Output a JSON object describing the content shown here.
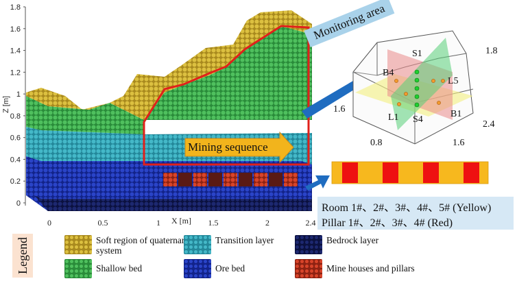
{
  "colors": {
    "soft": "#c8a92c",
    "shallow": "#3fae4e",
    "transition": "#35a5b5",
    "ore": "#1a2fa8",
    "bedrock": "#131b55",
    "mine": "#c0311c",
    "frame_red": "#e0211b",
    "arrow_blue": "#1f6cc0",
    "arrow_orange": "#f2b41c",
    "strip_yellow": "#f7b81e",
    "strip_red": "#ee1111"
  },
  "axes": {
    "z_label": "Z [m]",
    "x_label": "X [m]",
    "z_ticks": [
      "1.8",
      "1.6",
      "1.4",
      "1.2",
      "1",
      "0.8",
      "0.6",
      "0.4",
      "0.2",
      "0"
    ],
    "x_ticks": [
      "0",
      "0.5",
      "1",
      "1.5",
      "2",
      "2.4"
    ]
  },
  "labels": {
    "monitoring_area": "Monitoring area",
    "mining_sequence": "Mining sequence"
  },
  "monitor_box": {
    "dims": [
      "1.8",
      "1.6",
      "2.4",
      "0.8",
      "1.6"
    ],
    "points": [
      "B4",
      "S1",
      "L5",
      "L1",
      "S4",
      "B1"
    ]
  },
  "info": {
    "rooms": "Room 1#、2#、3#、4#、5# (Yellow)",
    "pillars": "Pillar 1#、2#、3#、4# (Red)"
  },
  "legend": {
    "title": "Legend",
    "items": [
      {
        "key": "soft",
        "label": "Soft region of quaternary system"
      },
      {
        "key": "transition",
        "label": "Transition layer"
      },
      {
        "key": "bedrock",
        "label": "Bedrock layer"
      },
      {
        "key": "shallow",
        "label": "Shallow bed"
      },
      {
        "key": "ore",
        "label": "Ore bed"
      },
      {
        "key": "mine",
        "label": "Mine houses and pillars"
      }
    ]
  }
}
